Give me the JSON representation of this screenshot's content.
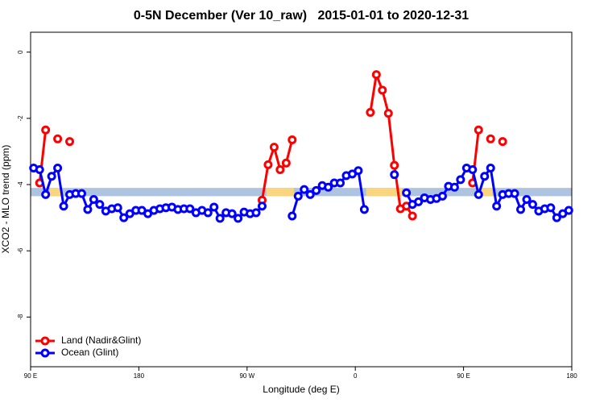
{
  "chart_data": {
    "type": "line",
    "title": "0-5N December (Ver 10_raw)   2015-01-01 to 2020-12-31",
    "x_label": "Longitude (deg E)",
    "y_label": "XCO2 - MLO trend (ppm)",
    "xlim": [
      90,
      540
    ],
    "xticks": [
      {
        "value": 90,
        "label": "90 E"
      },
      180,
      {
        "value": 270,
        "label": "90 W"
      },
      {
        "value": 360,
        "label": "0"
      },
      {
        "value": 450,
        "label": "90 E"
      },
      {
        "value": 540,
        "label": "180"
      }
    ],
    "ylim": [
      -9.5,
      0.6
    ],
    "yticks": [
      0,
      -2,
      -4,
      -6,
      -8
    ],
    "legend": "bottom-left",
    "band": {
      "y": [
        -4.35,
        -4.1
      ],
      "color": "#aec3e0"
    },
    "highlight": {
      "color": "#f8d57e",
      "x": [
        [
          106,
          115
        ],
        [
          286,
          309
        ],
        [
          369,
          399
        ],
        [
          465,
          474
        ]
      ]
    },
    "x": [
      92.5,
      97.5,
      102.5,
      107.5,
      112.5,
      117.5,
      122.5,
      127.5,
      132.5,
      137.5,
      142.5,
      147.5,
      152.5,
      157.5,
      162.5,
      167.5,
      172.5,
      177.5,
      182.5,
      187.5,
      192.5,
      197.5,
      202.5,
      207.5,
      212.5,
      217.5,
      222.5,
      227.5,
      232.5,
      237.5,
      242.5,
      247.5,
      252.5,
      257.5,
      262.5,
      267.5,
      272.5,
      277.5,
      282.5,
      287.5,
      292.5,
      297.5,
      302.5,
      307.5,
      312.5,
      317.5,
      322.5,
      327.5,
      332.5,
      337.5,
      342.5,
      347.5,
      352.5,
      357.5,
      362.5,
      367.5,
      372.5,
      377.5,
      382.5,
      387.5,
      392.5,
      397.5,
      402.5,
      407.5,
      412.5,
      417.5,
      422.5,
      427.5,
      432.5,
      437.5,
      442.5,
      447.5,
      452.5,
      457.5,
      462.5,
      467.5,
      472.5,
      477.5,
      482.5,
      487.5,
      492.5,
      497.5,
      502.5,
      507.5,
      512.5,
      517.5,
      522.5,
      527.5,
      532.5,
      537.5
    ],
    "series": [
      {
        "name": "Land (Nadir&Glint)",
        "color": "#ff0000",
        "values": [
          null,
          -3.95,
          -2.35,
          null,
          -2.62,
          null,
          -2.7,
          null,
          null,
          null,
          null,
          null,
          null,
          null,
          null,
          null,
          null,
          null,
          null,
          null,
          null,
          null,
          null,
          null,
          null,
          null,
          null,
          null,
          null,
          null,
          null,
          null,
          null,
          null,
          null,
          null,
          null,
          null,
          -4.47,
          -3.4,
          -2.87,
          -3.55,
          -3.35,
          -2.65,
          null,
          null,
          null,
          null,
          null,
          null,
          null,
          null,
          null,
          null,
          null,
          null,
          -1.82,
          -0.68,
          -1.15,
          -1.85,
          -3.42,
          -4.73,
          -4.65,
          -4.95,
          null,
          null,
          null,
          null,
          null,
          null,
          null,
          null,
          null,
          -3.95,
          -2.35,
          null,
          -2.62,
          null,
          -2.7,
          null,
          null,
          null,
          null,
          null,
          null,
          null,
          null,
          null,
          null,
          null
        ]
      },
      {
        "name": "Ocean (Glint)",
        "color": "#0000ff",
        "values": [
          -3.5,
          -3.55,
          -4.3,
          -3.75,
          -3.5,
          -4.65,
          -4.3,
          -4.27,
          -4.27,
          -4.75,
          -4.45,
          -4.6,
          -4.8,
          -4.73,
          -4.7,
          -5.0,
          -4.88,
          -4.78,
          -4.78,
          -4.88,
          -4.78,
          -4.73,
          -4.7,
          -4.68,
          -4.75,
          -4.73,
          -4.73,
          -4.85,
          -4.78,
          -4.85,
          -4.68,
          -5.02,
          -4.85,
          -4.88,
          -5.02,
          -4.83,
          -4.88,
          -4.85,
          -4.65,
          null,
          null,
          null,
          null,
          -4.95,
          -4.35,
          -4.15,
          -4.3,
          -4.18,
          -4.03,
          -4.08,
          -3.95,
          -3.95,
          -3.73,
          -3.68,
          -3.58,
          -4.75,
          null,
          null,
          null,
          null,
          -3.7,
          null,
          -4.25,
          -4.6,
          -4.52,
          -4.4,
          -4.45,
          -4.42,
          -4.35,
          -4.05,
          -4.08,
          -3.85,
          -3.5,
          -3.55,
          -4.3,
          -3.75,
          -3.5,
          -4.65,
          -4.3,
          -4.27,
          -4.27,
          -4.75,
          -4.45,
          -4.6,
          -4.8,
          -4.73,
          -4.7,
          -5.0,
          -4.88,
          -4.78
        ]
      }
    ]
  }
}
